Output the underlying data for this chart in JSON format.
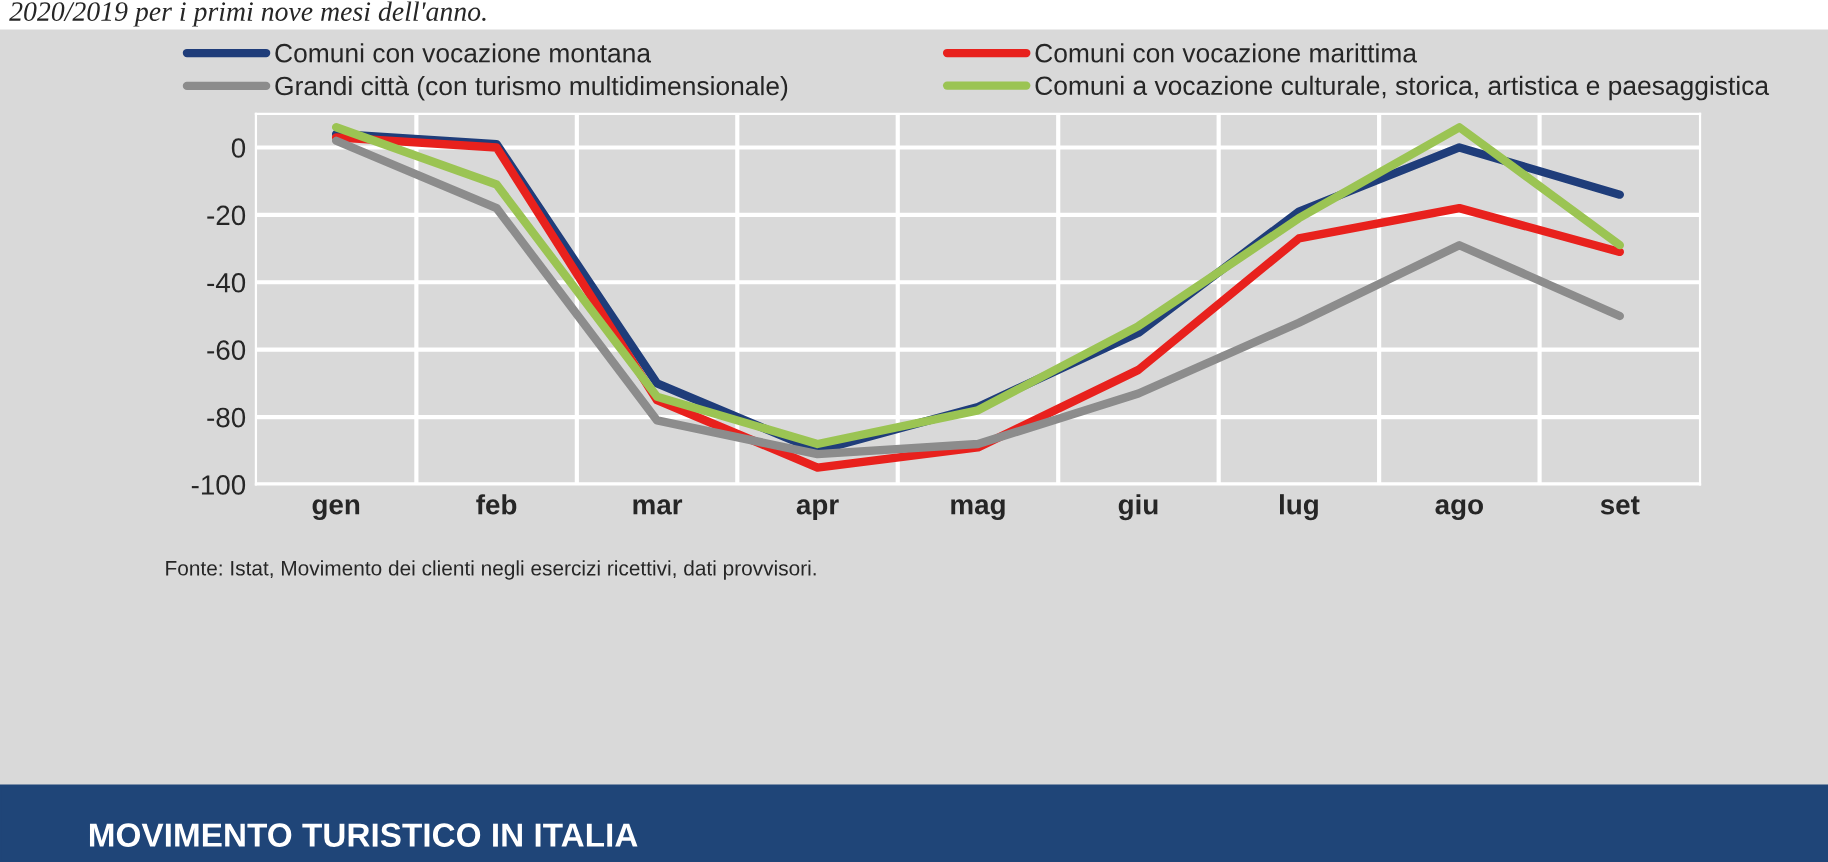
{
  "chart_data": {
    "type": "line",
    "subtitle": "2020/2019 per i primi nove mesi dell'anno.",
    "categories": [
      "gen",
      "feb",
      "mar",
      "apr",
      "mag",
      "giu",
      "lug",
      "ago",
      "set"
    ],
    "series": [
      {
        "name": "Comuni con vocazione montana",
        "color": "#1f3d7a",
        "values": [
          4,
          1,
          -70,
          -90,
          -77,
          -55,
          -19,
          0,
          -14
        ]
      },
      {
        "name": "Comuni con vocazione marittima",
        "color": "#e8211d",
        "values": [
          3,
          0,
          -75,
          -95,
          -89,
          -66,
          -27,
          -18,
          -31
        ]
      },
      {
        "name": "Grandi città (con turismo multidimensionale)",
        "color": "#8c8c8c",
        "values": [
          2,
          -18,
          -81,
          -91,
          -88,
          -73,
          -52,
          -29,
          -50
        ]
      },
      {
        "name": "Comuni a vocazione culturale, storica, artistica e paesaggistica",
        "color": "#9bc453",
        "values": [
          6,
          -11,
          -74,
          -88,
          -78,
          -53,
          -21,
          6,
          -29
        ]
      }
    ],
    "ylim": [
      -100,
      10
    ],
    "yticks": [
      -100,
      -80,
      -60,
      -40,
      -20,
      0
    ],
    "grid": true,
    "legend": "top",
    "marker": "none",
    "line_style": "solid",
    "annotations": [
      "Fonte: Istat, Movimento dei clienti negli esercizi ricettivi, dati provvisori.",
      "MOVIMENTO TURISTICO IN ITALIA"
    ]
  }
}
